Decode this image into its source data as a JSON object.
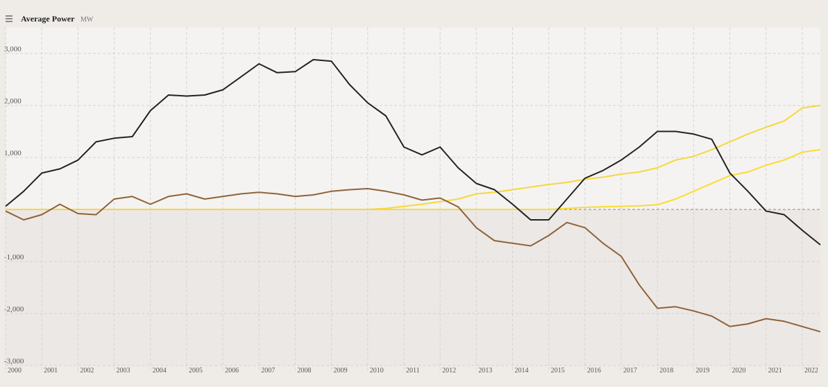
{
  "chart_data": {
    "type": "line",
    "title": "Average Power",
    "unit": "MW",
    "x": [
      2000,
      2000.5,
      2001,
      2001.5,
      2002,
      2002.5,
      2003,
      2003.5,
      2004,
      2004.5,
      2005,
      2005.5,
      2006,
      2006.5,
      2007,
      2007.5,
      2008,
      2008.5,
      2009,
      2009.5,
      2010,
      2010.5,
      2011,
      2011.5,
      2012,
      2012.5,
      2013,
      2013.5,
      2014,
      2014.5,
      2015,
      2015.5,
      2016,
      2016.5,
      2017,
      2017.5,
      2018,
      2018.5,
      2019,
      2019.5,
      2020,
      2020.5,
      2021,
      2021.5,
      2022,
      2022.5
    ],
    "series": [
      {
        "color": "#222222",
        "values": [
          60,
          350,
          700,
          780,
          950,
          1300,
          1370,
          1400,
          1900,
          2200,
          2180,
          2200,
          2300,
          2550,
          2800,
          2630,
          2650,
          2880,
          2850,
          2400,
          2050,
          1800,
          1200,
          1050,
          1200,
          800,
          500,
          380,
          100,
          -200,
          -200,
          200,
          600,
          750,
          950,
          1200,
          1500,
          1500,
          1450,
          1350,
          700,
          350,
          -30,
          -100,
          -400,
          -680
        ]
      },
      {
        "color": "#8f6238",
        "values": [
          -30,
          -200,
          -100,
          100,
          -80,
          -100,
          200,
          250,
          100,
          250,
          300,
          200,
          250,
          300,
          330,
          300,
          250,
          280,
          350,
          380,
          400,
          350,
          280,
          180,
          220,
          50,
          -350,
          -600,
          -650,
          -700,
          -500,
          -250,
          -350,
          -650,
          -900,
          -1450,
          -1900,
          -1870,
          -1950,
          -2050,
          -2250,
          -2200,
          -2100,
          -2150,
          -2250,
          -2350
        ]
      },
      {
        "color": "#f7d73a",
        "values": [
          0,
          0,
          0,
          0,
          0,
          0,
          0,
          0,
          0,
          0,
          0,
          0,
          0,
          0,
          0,
          0,
          0,
          0,
          0,
          0,
          0,
          20,
          60,
          100,
          150,
          200,
          300,
          330,
          380,
          430,
          480,
          520,
          580,
          620,
          680,
          720,
          800,
          950,
          1020,
          1150,
          1300,
          1450,
          1580,
          1700,
          1950,
          2000
        ]
      },
      {
        "color": "#fbdc2c",
        "values": [
          0,
          0,
          0,
          0,
          0,
          0,
          0,
          0,
          0,
          0,
          0,
          0,
          0,
          0,
          0,
          0,
          0,
          0,
          0,
          0,
          0,
          0,
          0,
          0,
          0,
          0,
          0,
          0,
          0,
          0,
          0,
          20,
          40,
          50,
          60,
          70,
          90,
          200,
          350,
          500,
          650,
          720,
          850,
          950,
          1100,
          1150
        ]
      }
    ],
    "xlim": [
      2000,
      2022.5
    ],
    "xticks": [
      2000,
      2001,
      2002,
      2003,
      2004,
      2005,
      2006,
      2007,
      2008,
      2009,
      2010,
      2011,
      2012,
      2013,
      2014,
      2015,
      2016,
      2017,
      2018,
      2019,
      2020,
      2021,
      2022
    ],
    "ylim": [
      -3000,
      3500
    ],
    "yticks": [
      {
        "value": 3000,
        "label": "3,000"
      },
      {
        "value": 2000,
        "label": "2,000"
      },
      {
        "value": 1000,
        "label": "1,000"
      },
      {
        "value": -1000,
        "label": "-1,000"
      },
      {
        "value": -2000,
        "label": "-2,000"
      },
      {
        "value": -3000,
        "label": "-3,000"
      }
    ],
    "grid": true,
    "zero_line": true
  }
}
